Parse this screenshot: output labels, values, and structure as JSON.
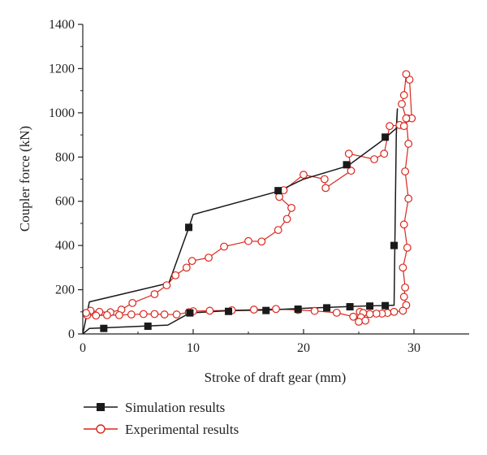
{
  "chart_data": {
    "type": "line",
    "xlabel": "Stroke of draft gear (mm)",
    "ylabel": "Coupler force (kN)",
    "xlim": [
      0,
      35
    ],
    "ylim": [
      0,
      1400
    ],
    "x_ticks": [
      0,
      10,
      20,
      30
    ],
    "y_ticks": [
      0,
      200,
      400,
      600,
      800,
      1000,
      1200,
      1400
    ],
    "legend_position": "bottom-left",
    "series": [
      {
        "name": "Simulation results",
        "color": "#1a1a1a",
        "marker": "filled-square",
        "line_points": [
          [
            0,
            0
          ],
          [
            0.6,
            25
          ],
          [
            7.7,
            40
          ],
          [
            9.7,
            95
          ],
          [
            13.2,
            105
          ],
          [
            16.6,
            108
          ],
          [
            19.5,
            115
          ],
          [
            22.1,
            120
          ],
          [
            24.2,
            124
          ],
          [
            26.0,
            127
          ],
          [
            27.4,
            128
          ],
          [
            28.2,
            130
          ],
          [
            28.4,
            900
          ],
          [
            28.5,
            1020
          ],
          [
            28.4,
            930
          ],
          [
            27.0,
            870
          ],
          [
            24.0,
            760
          ],
          [
            20.0,
            700
          ],
          [
            17.7,
            645
          ],
          [
            10.0,
            540
          ],
          [
            9.6,
            480
          ],
          [
            7.8,
            230
          ],
          [
            0.6,
            145
          ],
          [
            0,
            0
          ]
        ],
        "marker_points": [
          [
            1.9,
            25
          ],
          [
            5.9,
            35
          ],
          [
            9.7,
            95
          ],
          [
            13.2,
            102
          ],
          [
            16.6,
            106
          ],
          [
            19.5,
            112
          ],
          [
            22.1,
            118
          ],
          [
            24.2,
            123
          ],
          [
            26.0,
            126
          ],
          [
            27.4,
            128
          ],
          [
            28.2,
            400
          ],
          [
            27.4,
            890
          ],
          [
            23.9,
            765
          ],
          [
            17.7,
            648
          ],
          [
            9.6,
            482
          ]
        ]
      },
      {
        "name": "Experimental results",
        "color": "#d9261c",
        "marker": "open-circle",
        "points": [
          [
            0.7,
            105
          ],
          [
            1.5,
            100
          ],
          [
            2.5,
            98
          ],
          [
            3.5,
            110
          ],
          [
            4.5,
            140
          ],
          [
            6.5,
            180
          ],
          [
            7.6,
            220
          ],
          [
            8.4,
            265
          ],
          [
            9.4,
            300
          ],
          [
            9.9,
            330
          ],
          [
            11.4,
            345
          ],
          [
            12.8,
            395
          ],
          [
            15.0,
            420
          ],
          [
            16.2,
            418
          ],
          [
            17.7,
            470
          ],
          [
            18.5,
            520
          ],
          [
            18.9,
            570
          ],
          [
            17.8,
            620
          ],
          [
            18.2,
            650
          ],
          [
            20.0,
            720
          ],
          [
            21.9,
            700
          ],
          [
            22.0,
            660
          ],
          [
            24.3,
            738
          ],
          [
            24.1,
            815
          ],
          [
            26.4,
            790
          ],
          [
            27.3,
            815
          ],
          [
            27.8,
            940
          ],
          [
            28.7,
            945
          ],
          [
            29.1,
            940
          ],
          [
            29.4,
            975
          ],
          [
            29.8,
            975
          ],
          [
            29.6,
            1150
          ],
          [
            29.3,
            1175
          ],
          [
            29.1,
            1080
          ],
          [
            28.9,
            1040
          ],
          [
            29.3,
            975
          ],
          [
            29.5,
            860
          ],
          [
            29.2,
            735
          ],
          [
            29.5,
            612
          ],
          [
            29.1,
            495
          ],
          [
            29.4,
            390
          ],
          [
            29.0,
            300
          ],
          [
            29.2,
            210
          ],
          [
            29.1,
            168
          ],
          [
            29.3,
            130
          ],
          [
            29.0,
            105
          ],
          [
            28.2,
            100
          ],
          [
            27.6,
            95
          ],
          [
            27.1,
            92
          ],
          [
            26.6,
            92
          ],
          [
            26.0,
            90
          ],
          [
            25.3,
            92
          ],
          [
            25.1,
            100
          ],
          [
            25.4,
            95
          ],
          [
            25.2,
            75
          ],
          [
            25.6,
            60
          ],
          [
            25.0,
            55
          ],
          [
            24.5,
            78
          ],
          [
            23.0,
            96
          ],
          [
            21.0,
            104
          ],
          [
            19.5,
            108
          ],
          [
            17.5,
            113
          ],
          [
            15.5,
            110
          ],
          [
            13.5,
            107
          ],
          [
            11.5,
            105
          ],
          [
            10.0,
            103
          ],
          [
            9.6,
            98
          ],
          [
            8.5,
            88
          ],
          [
            7.4,
            88
          ],
          [
            6.5,
            90
          ],
          [
            5.5,
            90
          ],
          [
            4.4,
            88
          ],
          [
            3.3,
            85
          ],
          [
            2.2,
            85
          ],
          [
            1.2,
            83
          ],
          [
            0.4,
            85
          ],
          [
            0.3,
            95
          ]
        ]
      }
    ]
  }
}
